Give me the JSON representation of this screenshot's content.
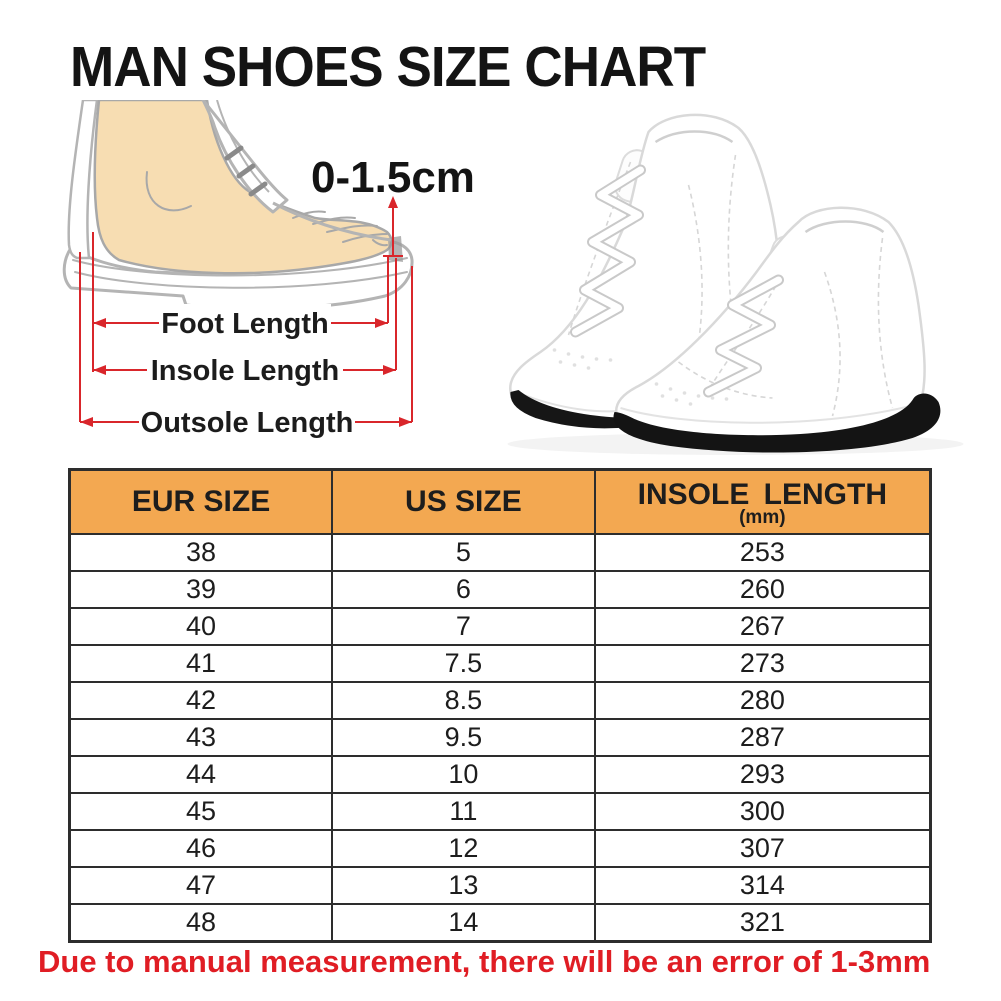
{
  "page": {
    "title": "MAN SHOES SIZE CHART"
  },
  "diagram": {
    "toe_gap_label": "0-1.5cm",
    "labels": {
      "foot": "Foot Length",
      "insole": "Insole Length",
      "outsole": "Outsole Length"
    },
    "colors": {
      "dimension_red": "#d9262b",
      "skin": "#f7ddb2",
      "outline_gray": "#b2b2b2"
    }
  },
  "photo": {
    "subject": "pair of white high-top sneakers with black soles"
  },
  "table": {
    "header_bg": "#f3a851",
    "border_color": "#2d2d2d",
    "headers": {
      "eur": "EUR SIZE",
      "us": "US SIZE",
      "insole": "INSOLE LENGTH",
      "insole_unit": "(mm)"
    },
    "rows": [
      [
        "38",
        "5",
        "253"
      ],
      [
        "39",
        "6",
        "260"
      ],
      [
        "40",
        "7",
        "267"
      ],
      [
        "41",
        "7.5",
        "273"
      ],
      [
        "42",
        "8.5",
        "280"
      ],
      [
        "43",
        "9.5",
        "287"
      ],
      [
        "44",
        "10",
        "293"
      ],
      [
        "45",
        "11",
        "300"
      ],
      [
        "46",
        "12",
        "307"
      ],
      [
        "47",
        "13",
        "314"
      ],
      [
        "48",
        "14",
        "321"
      ]
    ]
  },
  "footnote": {
    "text": "Due to manual measurement, there will be an error of 1-3mm",
    "color": "#e01d24"
  },
  "chart_data": {
    "type": "table",
    "title": "MAN SHOES SIZE CHART",
    "columns": [
      "EUR SIZE",
      "US SIZE",
      "INSOLE LENGTH (mm)"
    ],
    "rows": [
      [
        38,
        5,
        253
      ],
      [
        39,
        6,
        260
      ],
      [
        40,
        7,
        267
      ],
      [
        41,
        7.5,
        273
      ],
      [
        42,
        8.5,
        280
      ],
      [
        43,
        9.5,
        287
      ],
      [
        44,
        10,
        293
      ],
      [
        45,
        11,
        300
      ],
      [
        46,
        12,
        307
      ],
      [
        47,
        13,
        314
      ],
      [
        48,
        14,
        321
      ]
    ]
  }
}
